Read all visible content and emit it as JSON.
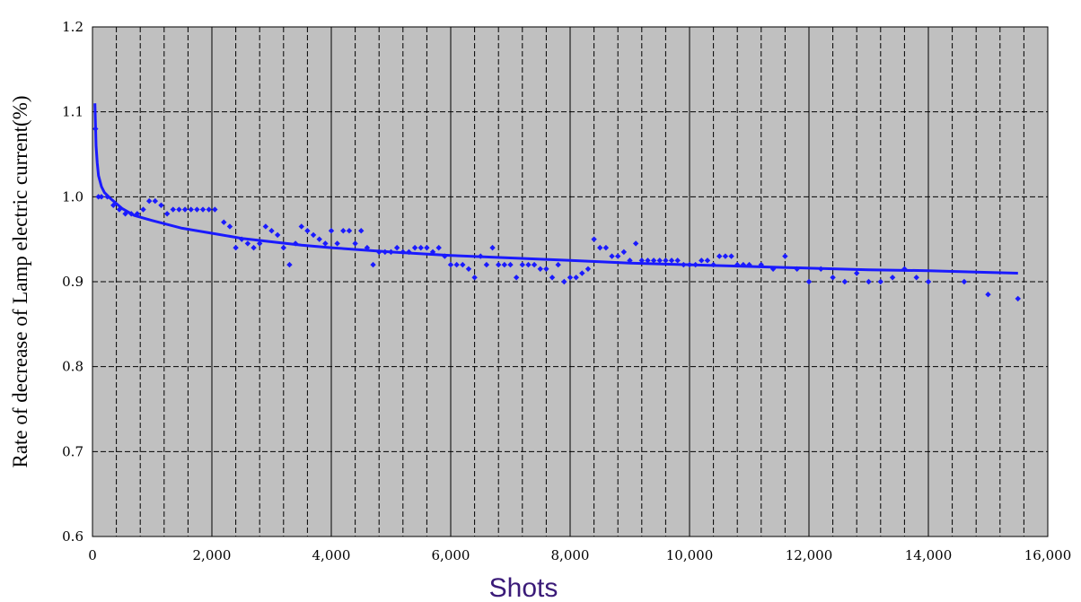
{
  "chart_data": {
    "type": "scatter",
    "title": "",
    "xlabel": "Shots",
    "ylabel": "Rate of decrease of Lamp electric current(%)",
    "xlim": [
      0,
      16000
    ],
    "ylim": [
      0.6,
      1.2
    ],
    "x_ticks": [
      0,
      2000,
      4000,
      6000,
      8000,
      10000,
      12000,
      14000,
      16000
    ],
    "x_tick_labels": [
      "0",
      "2,000",
      "4,000",
      "6,000",
      "8,000",
      "10,000",
      "12,000",
      "14,000",
      "16,000"
    ],
    "y_ticks": [
      0.6,
      0.7,
      0.8,
      0.9,
      1.0,
      1.1,
      1.2
    ],
    "y_tick_labels": [
      "0.6",
      "0.7",
      "0.8",
      "0.9",
      "1.0",
      "1.1",
      "1.2"
    ],
    "x_minor_grid_step": 400,
    "grid": true,
    "legend": "none",
    "colors": {
      "plot_background": "#c0c0c0",
      "series": "#1a1aff",
      "xlabel": "#3a1a78"
    },
    "series": [
      {
        "kind": "points",
        "x": [
          50,
          100,
          150,
          250,
          350,
          450,
          550,
          650,
          750,
          850,
          950,
          1050,
          1150,
          1250,
          1350,
          1450,
          1550,
          1650,
          1750,
          1850,
          1950,
          2050,
          2200,
          2300,
          2400,
          2500,
          2600,
          2700,
          2800,
          2900,
          3000,
          3100,
          3200,
          3300,
          3400,
          3500,
          3600,
          3700,
          3800,
          3900,
          4000,
          4100,
          4200,
          4300,
          4400,
          4500,
          4600,
          4700,
          4800,
          4900,
          5000,
          5100,
          5200,
          5300,
          5400,
          5500,
          5600,
          5700,
          5800,
          5900,
          6000,
          6100,
          6200,
          6300,
          6400,
          6500,
          6600,
          6700,
          6800,
          6900,
          7000,
          7100,
          7200,
          7300,
          7400,
          7500,
          7600,
          7700,
          7800,
          7900,
          8000,
          8100,
          8200,
          8300,
          8400,
          8500,
          8600,
          8700,
          8800,
          8900,
          9000,
          9100,
          9200,
          9300,
          9400,
          9500,
          9600,
          9700,
          9800,
          9900,
          10000,
          10100,
          10200,
          10300,
          10400,
          10500,
          10600,
          10700,
          10800,
          10900,
          11000,
          11200,
          11400,
          11600,
          11800,
          12000,
          12200,
          12400,
          12600,
          12800,
          13000,
          13200,
          13400,
          13600,
          13800,
          14000,
          14600,
          15000,
          15500
        ],
        "y": [
          1.08,
          1.0,
          1.0,
          1.0,
          0.99,
          0.985,
          0.98,
          0.98,
          0.98,
          0.985,
          0.995,
          0.995,
          0.99,
          0.98,
          0.985,
          0.985,
          0.985,
          0.985,
          0.985,
          0.985,
          0.985,
          0.985,
          0.97,
          0.965,
          0.94,
          0.95,
          0.945,
          0.94,
          0.945,
          0.965,
          0.96,
          0.955,
          0.94,
          0.92,
          0.945,
          0.965,
          0.96,
          0.955,
          0.95,
          0.945,
          0.96,
          0.945,
          0.96,
          0.96,
          0.945,
          0.96,
          0.94,
          0.92,
          0.935,
          0.935,
          0.935,
          0.94,
          0.935,
          0.935,
          0.94,
          0.94,
          0.94,
          0.935,
          0.94,
          0.93,
          0.92,
          0.92,
          0.92,
          0.915,
          0.905,
          0.93,
          0.92,
          0.94,
          0.92,
          0.92,
          0.92,
          0.905,
          0.92,
          0.92,
          0.92,
          0.915,
          0.915,
          0.905,
          0.92,
          0.9,
          0.905,
          0.905,
          0.91,
          0.915,
          0.95,
          0.94,
          0.94,
          0.93,
          0.93,
          0.935,
          0.925,
          0.945,
          0.925,
          0.925,
          0.925,
          0.925,
          0.925,
          0.925,
          0.925,
          0.92,
          0.92,
          0.92,
          0.925,
          0.925,
          0.92,
          0.93,
          0.93,
          0.93,
          0.92,
          0.92,
          0.92,
          0.92,
          0.915,
          0.93,
          0.915,
          0.9,
          0.915,
          0.905,
          0.9,
          0.91,
          0.9,
          0.9,
          0.905,
          0.915,
          0.905,
          0.9,
          0.9,
          0.885,
          0.88
        ]
      },
      {
        "kind": "fitted curve",
        "x": [
          40,
          60,
          80,
          100,
          150,
          200,
          300,
          400,
          500,
          700,
          1000,
          1500,
          2000,
          2500,
          3000,
          3500,
          4000,
          5000,
          6000,
          7000,
          8000,
          9000,
          10000,
          11000,
          12000,
          13000,
          14000,
          15000,
          15500
        ],
        "y": [
          1.11,
          1.06,
          1.04,
          1.025,
          1.012,
          1.005,
          0.998,
          0.992,
          0.986,
          0.978,
          0.972,
          0.963,
          0.957,
          0.951,
          0.947,
          0.943,
          0.94,
          0.935,
          0.931,
          0.928,
          0.925,
          0.922,
          0.92,
          0.918,
          0.916,
          0.914,
          0.913,
          0.911,
          0.91
        ]
      }
    ]
  }
}
